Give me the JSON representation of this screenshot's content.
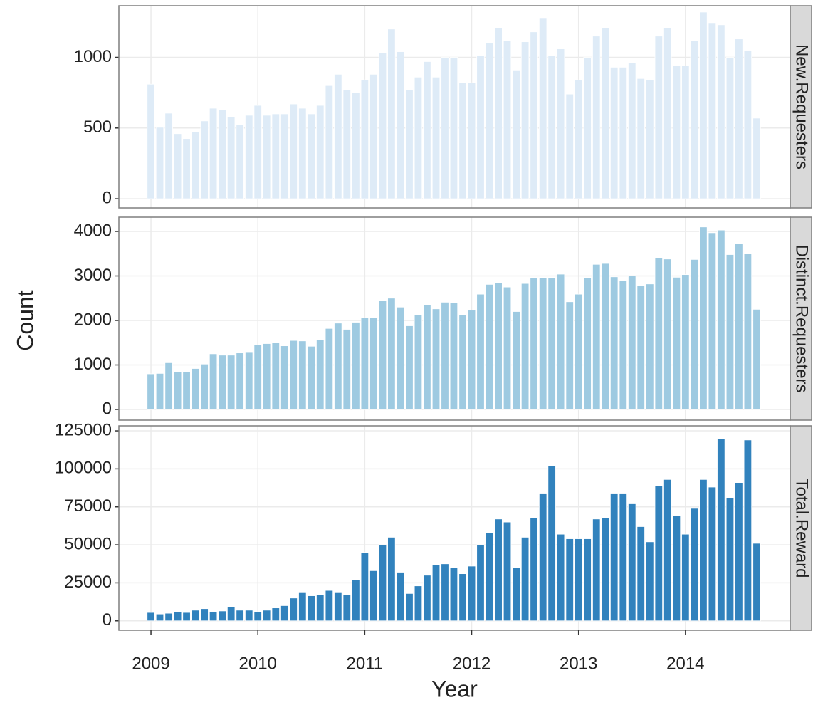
{
  "chart_data": {
    "type": "bar",
    "x_label": "Year",
    "y_label": "Count",
    "x": [
      2009,
      2009.083,
      2009.167,
      2009.25,
      2009.333,
      2009.417,
      2009.5,
      2009.583,
      2009.667,
      2009.75,
      2009.833,
      2009.917,
      2010,
      2010.083,
      2010.167,
      2010.25,
      2010.333,
      2010.417,
      2010.5,
      2010.583,
      2010.667,
      2010.75,
      2010.833,
      2010.917,
      2011,
      2011.083,
      2011.167,
      2011.25,
      2011.333,
      2011.417,
      2011.5,
      2011.583,
      2011.667,
      2011.75,
      2011.833,
      2011.917,
      2012,
      2012.083,
      2012.167,
      2012.25,
      2012.333,
      2012.417,
      2012.5,
      2012.583,
      2012.667,
      2012.75,
      2012.833,
      2012.917,
      2013,
      2013.083,
      2013.167,
      2013.25,
      2013.333,
      2013.417,
      2013.5,
      2013.583,
      2013.667,
      2013.75,
      2013.833,
      2013.917,
      2014,
      2014.083,
      2014.167,
      2014.25,
      2014.333,
      2014.417,
      2014.5,
      2014.583,
      2014.667
    ],
    "xlim": [
      2008.7,
      2014.98
    ],
    "xticks": [
      2009,
      2010,
      2011,
      2012,
      2013,
      2014
    ],
    "grid": true,
    "series": [
      {
        "name": "New.Requesters",
        "color": "#deebf7",
        "ylim": [
          -65,
          1365
        ],
        "yticks": [
          0,
          500,
          1000
        ],
        "values": [
          810,
          505,
          605,
          460,
          425,
          475,
          550,
          640,
          630,
          580,
          525,
          590,
          660,
          590,
          600,
          600,
          670,
          640,
          600,
          660,
          800,
          880,
          770,
          750,
          840,
          880,
          1030,
          1200,
          1040,
          770,
          860,
          970,
          860,
          1000,
          1000,
          820,
          820,
          1010,
          1100,
          1210,
          1120,
          910,
          1110,
          1180,
          1280,
          1010,
          1060,
          740,
          840,
          1000,
          1150,
          1210,
          930,
          930,
          960,
          850,
          840,
          1150,
          1210,
          940,
          940,
          1120,
          1320,
          1240,
          1230,
          1000,
          1130,
          1050,
          570
        ]
      },
      {
        "name": "Distinct.Requesters",
        "color": "#9ecae1",
        "ylim": [
          -240,
          4320
        ],
        "yticks": [
          0,
          1000,
          2000,
          3000,
          4000
        ],
        "values": [
          800,
          810,
          1050,
          840,
          840,
          920,
          1020,
          1250,
          1220,
          1220,
          1270,
          1280,
          1450,
          1480,
          1510,
          1430,
          1550,
          1540,
          1420,
          1560,
          1820,
          1940,
          1800,
          1960,
          2060,
          2060,
          2440,
          2500,
          2300,
          1880,
          2130,
          2350,
          2260,
          2410,
          2400,
          2130,
          2230,
          2590,
          2810,
          2840,
          2750,
          2200,
          2830,
          2950,
          2960,
          2950,
          3040,
          2420,
          2590,
          2960,
          3260,
          3280,
          2980,
          2900,
          3000,
          2790,
          2820,
          3400,
          3380,
          2970,
          3030,
          3370,
          4100,
          3970,
          4030,
          3480,
          3730,
          3500,
          2250
        ]
      },
      {
        "name": "Total.Reward",
        "color": "#3182bd",
        "ylim": [
          -6200,
          128300
        ],
        "yticks": [
          0,
          25000,
          50000,
          75000,
          100000,
          125000
        ],
        "values": [
          5500,
          4500,
          5000,
          6000,
          5500,
          7000,
          8000,
          6000,
          6500,
          9000,
          7000,
          7000,
          6000,
          7000,
          8500,
          10000,
          15000,
          18500,
          16500,
          17000,
          20000,
          18500,
          17000,
          27000,
          45000,
          33000,
          50000,
          55000,
          32000,
          18000,
          23000,
          30000,
          37000,
          37500,
          35000,
          31000,
          36000,
          50000,
          58000,
          67000,
          65000,
          35000,
          55000,
          68000,
          84000,
          102000,
          57000,
          54000,
          54000,
          54000,
          67000,
          68000,
          84000,
          84000,
          77000,
          62000,
          52000,
          89000,
          93000,
          69000,
          57000,
          74000,
          93000,
          88000,
          120000,
          81000,
          91000,
          119000,
          51000
        ]
      }
    ]
  }
}
